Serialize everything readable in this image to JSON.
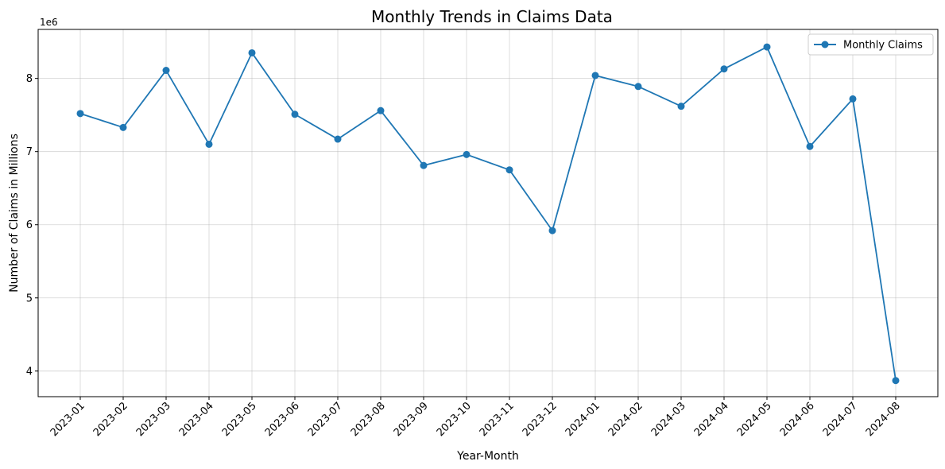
{
  "chart_data": {
    "type": "line",
    "title": "Monthly Trends in Claims Data",
    "xlabel": "Year-Month",
    "ylabel": "Number of Claims in Millions",
    "y_offset_label": "1e6",
    "categories": [
      "2023-01",
      "2023-02",
      "2023-03",
      "2023-04",
      "2023-05",
      "2023-06",
      "2023-07",
      "2023-08",
      "2023-09",
      "2023-10",
      "2023-11",
      "2023-12",
      "2024-01",
      "2024-02",
      "2024-03",
      "2024-04",
      "2024-05",
      "2024-06",
      "2024-07",
      "2024-08"
    ],
    "series": [
      {
        "name": "Monthly Claims",
        "color": "#1f77b4",
        "marker": "circle",
        "values": [
          7520000,
          7330000,
          8110000,
          7100000,
          8350000,
          7510000,
          7170000,
          7560000,
          6810000,
          6960000,
          6750000,
          5920000,
          8040000,
          7890000,
          7620000,
          8130000,
          8430000,
          7070000,
          7720000,
          3870000
        ]
      }
    ],
    "yticks": [
      4,
      5,
      6,
      7,
      8
    ],
    "ytick_scale": 1000000,
    "ylim": [
      3650000,
      8670000
    ],
    "grid": true,
    "legend_position": "top-right",
    "xtick_rotation_deg": 45
  }
}
